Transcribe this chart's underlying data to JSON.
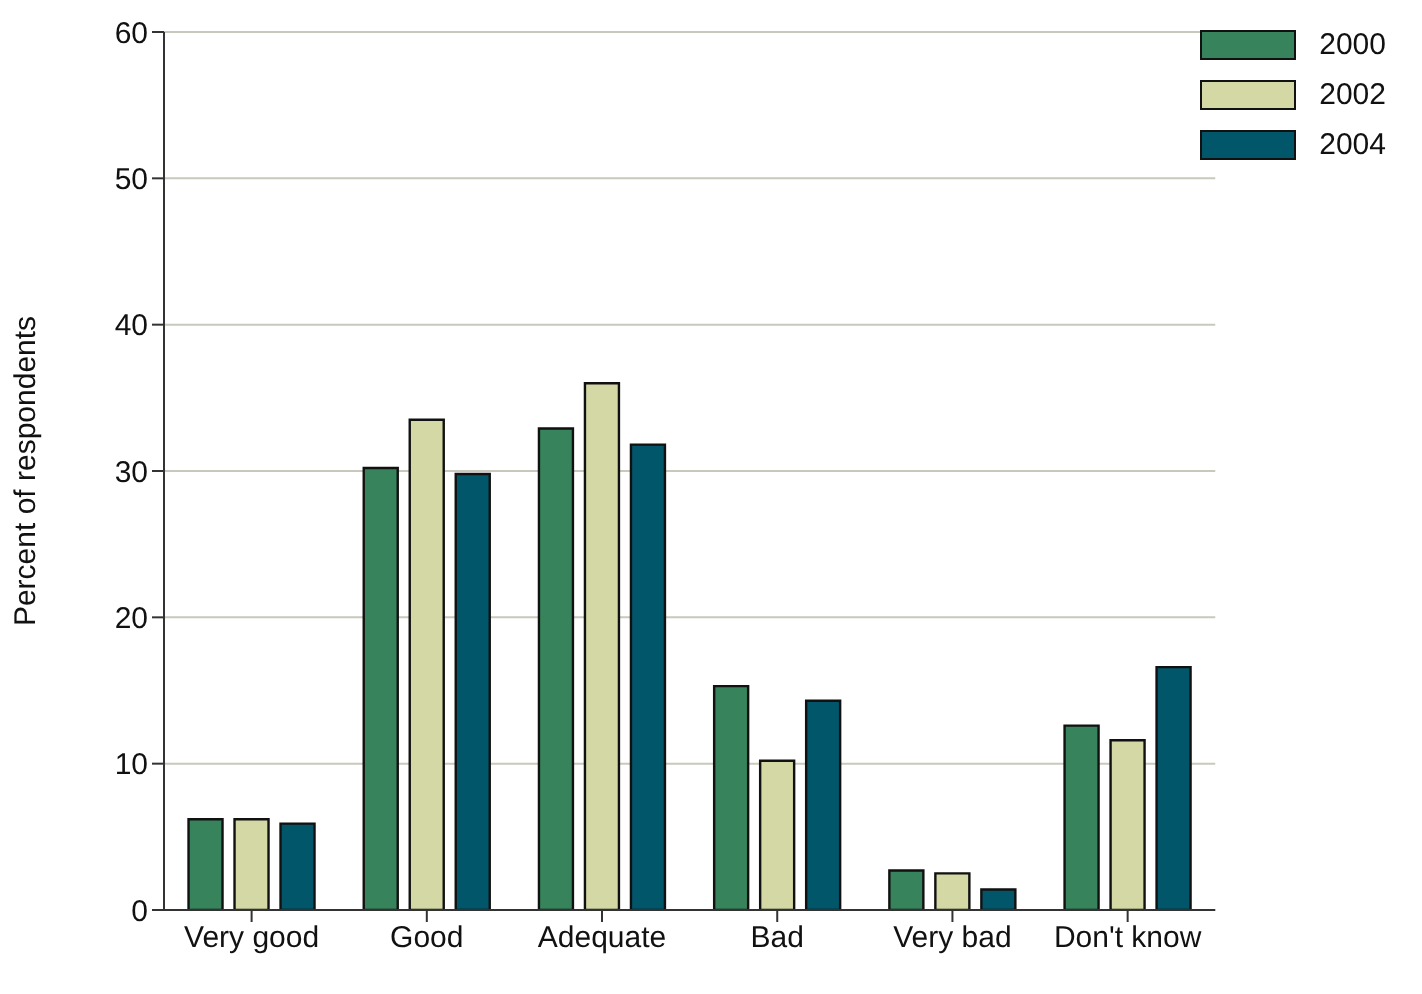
{
  "chart_data": {
    "type": "bar",
    "ylabel": "Percent of respondents",
    "categories": [
      "Very good",
      "Good",
      "Adequate",
      "Bad",
      "Very bad",
      "Don't know"
    ],
    "series": [
      {
        "name": "2000",
        "color": "#37835b",
        "values": [
          6.2,
          30.2,
          32.9,
          15.3,
          2.7,
          12.6
        ]
      },
      {
        "name": "2002",
        "color": "#d3d8a4",
        "values": [
          6.2,
          33.5,
          36.0,
          10.2,
          2.5,
          11.6
        ]
      },
      {
        "name": "2004",
        "color": "#02566a",
        "values": [
          5.9,
          29.8,
          31.8,
          14.3,
          1.4,
          16.6
        ]
      }
    ],
    "ylim": [
      0,
      60
    ],
    "yticks": [
      0,
      10,
      20,
      30,
      40,
      50,
      60
    ],
    "grid": "y",
    "legend": "top right"
  }
}
